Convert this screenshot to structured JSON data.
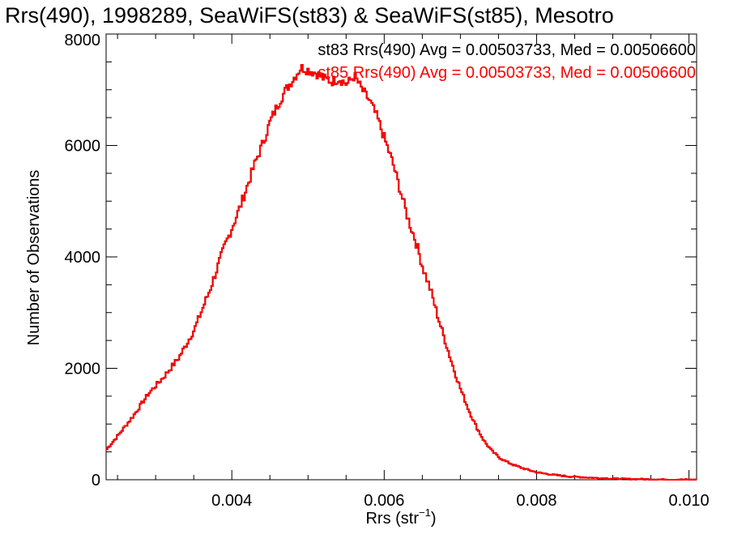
{
  "chart_data": {
    "type": "line",
    "title": "Rrs(490), 1998289, SeaWiFS(st83) & SeaWiFS(st85), Mesotro",
    "xlabel_main": "Rrs (str",
    "xlabel_sup": "−1",
    "xlabel_close": ")",
    "ylabel": "Number of Observations",
    "xlim": [
      0.00235,
      0.0101
    ],
    "ylim": [
      0,
      8000
    ],
    "x_ticks": [
      0.004,
      0.006,
      0.008,
      0.01
    ],
    "x_tick_labels": [
      "0.004",
      "0.006",
      "0.008",
      "0.010"
    ],
    "y_ticks": [
      0,
      2000,
      4000,
      6000,
      8000
    ],
    "y_tick_labels": [
      "0",
      "2000",
      "4000",
      "6000",
      "8000"
    ],
    "grid": false,
    "legend_position": "top-right",
    "series": [
      {
        "name": "st83",
        "color": "#000000",
        "legend_text": "st83 Rrs(490) Avg = 0.00503733, Med = 0.00506600",
        "x": [
          0.00235,
          0.0025,
          0.0027,
          0.0029,
          0.0031,
          0.0033,
          0.0035,
          0.0037,
          0.0039,
          0.0041,
          0.0042,
          0.0043,
          0.0044,
          0.0045,
          0.0046,
          0.0047,
          0.0048,
          0.0049,
          0.005,
          0.0051,
          0.0052,
          0.0053,
          0.0054,
          0.0055,
          0.0056,
          0.0057,
          0.0058,
          0.0059,
          0.006,
          0.0061,
          0.0062,
          0.0063,
          0.0064,
          0.0065,
          0.0066,
          0.0067,
          0.0068,
          0.0069,
          0.007,
          0.0071,
          0.0072,
          0.0073,
          0.0074,
          0.0075,
          0.0076,
          0.0077,
          0.0078,
          0.0079,
          0.008,
          0.0082,
          0.0084,
          0.0086,
          0.0088,
          0.009,
          0.0092,
          0.0094,
          0.0096,
          0.0098,
          0.01,
          0.0101
        ],
        "y": [
          550,
          800,
          1150,
          1550,
          1850,
          2200,
          2700,
          3400,
          4200,
          4900,
          5300,
          5700,
          6050,
          6450,
          6750,
          7000,
          7200,
          7400,
          7350,
          7300,
          7200,
          7150,
          7200,
          7100,
          7250,
          7000,
          6800,
          6500,
          6100,
          5700,
          5200,
          4700,
          4300,
          3800,
          3400,
          2900,
          2450,
          2000,
          1600,
          1250,
          950,
          700,
          520,
          400,
          320,
          260,
          210,
          170,
          130,
          90,
          60,
          45,
          30,
          20,
          14,
          10,
          6,
          4,
          2,
          1
        ]
      },
      {
        "name": "st85",
        "color": "#ff0000",
        "legend_text": "st85 Rrs(490) Avg = 0.00503733, Med = 0.00506600",
        "x": [
          0.00235,
          0.0025,
          0.0027,
          0.0029,
          0.0031,
          0.0033,
          0.0035,
          0.0037,
          0.0039,
          0.0041,
          0.0042,
          0.0043,
          0.0044,
          0.0045,
          0.0046,
          0.0047,
          0.0048,
          0.0049,
          0.005,
          0.0051,
          0.0052,
          0.0053,
          0.0054,
          0.0055,
          0.0056,
          0.0057,
          0.0058,
          0.0059,
          0.006,
          0.0061,
          0.0062,
          0.0063,
          0.0064,
          0.0065,
          0.0066,
          0.0067,
          0.0068,
          0.0069,
          0.007,
          0.0071,
          0.0072,
          0.0073,
          0.0074,
          0.0075,
          0.0076,
          0.0077,
          0.0078,
          0.0079,
          0.008,
          0.0082,
          0.0084,
          0.0086,
          0.0088,
          0.009,
          0.0092,
          0.0094,
          0.0096,
          0.0098,
          0.01,
          0.0101
        ],
        "y": [
          550,
          800,
          1150,
          1550,
          1850,
          2200,
          2700,
          3400,
          4200,
          4900,
          5300,
          5700,
          6050,
          6450,
          6750,
          7000,
          7200,
          7400,
          7350,
          7300,
          7200,
          7150,
          7200,
          7100,
          7250,
          7000,
          6800,
          6500,
          6100,
          5700,
          5200,
          4700,
          4300,
          3800,
          3400,
          2900,
          2450,
          2000,
          1600,
          1250,
          950,
          700,
          520,
          400,
          320,
          260,
          210,
          170,
          130,
          90,
          60,
          45,
          30,
          20,
          14,
          10,
          6,
          4,
          2,
          1
        ]
      }
    ]
  }
}
